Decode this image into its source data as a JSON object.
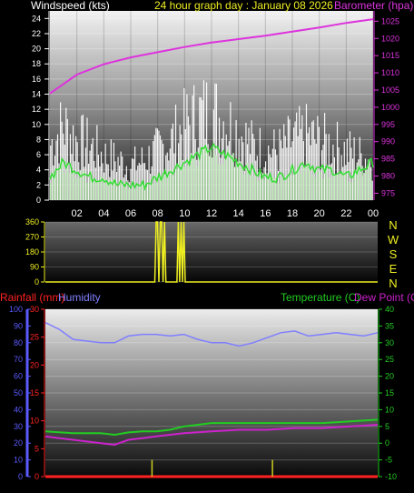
{
  "chart_data": [
    {
      "type": "line",
      "title_left": "Windspeed (kts)",
      "title_center": "24 hour graph day :  January 08 2026",
      "title_right": "Barometer (hpa)",
      "x_ticks": [
        "02",
        "04",
        "06",
        "08",
        "10",
        "12",
        "14",
        "16",
        "18",
        "20",
        "22",
        "00"
      ],
      "left_axis": {
        "label": "Windspeed (kts)",
        "ticks": [
          0,
          2,
          4,
          6,
          8,
          10,
          12,
          14,
          16,
          18,
          20,
          22,
          24
        ],
        "range": [
          0,
          25
        ]
      },
      "right_axis": {
        "label": "Barometer (hpa)",
        "ticks": [
          975,
          980,
          985,
          990,
          995,
          1000,
          1005,
          1010,
          1015,
          1020,
          1025
        ],
        "range": [
          973,
          1028
        ]
      },
      "colors": {
        "gust": "#ffffff",
        "average": "#33dd33",
        "barometer": "#dd33dd",
        "left_axis": "#ffffff",
        "right_axis": "#dd33dd"
      },
      "series": [
        {
          "key": "barometer",
          "x": [
            0,
            2,
            4,
            6,
            8,
            10,
            12,
            14,
            16,
            18,
            20,
            22,
            24
          ],
          "values": [
            1004.0,
            1009.5,
            1012.5,
            1014.5,
            1016.0,
            1017.5,
            1018.8,
            1019.8,
            1020.8,
            1022.0,
            1023.2,
            1024.5,
            1025.6
          ]
        },
        {
          "key": "gust_max",
          "x": [
            0,
            1,
            2,
            3,
            4,
            5,
            6,
            7,
            8,
            9,
            10,
            11,
            12,
            13,
            14,
            15,
            16,
            17,
            18,
            19,
            20,
            21,
            22,
            23,
            24
          ],
          "values": [
            11,
            15,
            12,
            11,
            9,
            8,
            7,
            8,
            10,
            12,
            15,
            17,
            18,
            16,
            14,
            11,
            10,
            10,
            12,
            13,
            12,
            11,
            10,
            9,
            8
          ]
        },
        {
          "key": "average",
          "x": [
            0,
            1,
            2,
            3,
            4,
            5,
            6,
            7,
            8,
            9,
            10,
            11,
            12,
            13,
            14,
            15,
            16,
            17,
            18,
            19,
            20,
            21,
            22,
            23,
            24
          ],
          "values": [
            3,
            5,
            4,
            3,
            3,
            2,
            2,
            2,
            3,
            4,
            5,
            6,
            7,
            6,
            5,
            4,
            3,
            3,
            4,
            5,
            4,
            4,
            3,
            4,
            5
          ]
        }
      ]
    },
    {
      "type": "line",
      "y_ticks": [
        0,
        90,
        180,
        270,
        360
      ],
      "right_labels": [
        "N",
        "W",
        "S",
        "E",
        "N"
      ],
      "x_range": [
        0,
        24
      ],
      "colors": {
        "direction": "#eeee22",
        "labels": "#eeee22"
      },
      "series": [
        {
          "key": "direction",
          "x": [
            0,
            7.9,
            8.0,
            8.1,
            8.2,
            8.3,
            8.4,
            8.5,
            8.6,
            8.7,
            9.5,
            9.6,
            9.7,
            9.8,
            9.9,
            10.0,
            10.1,
            24
          ],
          "values": [
            0,
            0,
            360,
            360,
            0,
            360,
            360,
            0,
            360,
            0,
            0,
            360,
            0,
            360,
            0,
            360,
            0,
            0
          ]
        }
      ]
    },
    {
      "type": "line",
      "title_rainfall": "Rainfall (mm)",
      "title_humidity": "Humidity",
      "title_temperature": "Temperature (C)",
      "title_dewpoint": "Dew Point (C)",
      "humidity_axis": {
        "ticks": [
          0,
          10,
          20,
          30,
          40,
          50,
          60,
          70,
          80,
          90,
          100
        ],
        "range": [
          0,
          100
        ]
      },
      "rain_axis": {
        "ticks": [
          0,
          5,
          10,
          15,
          20,
          25,
          30
        ],
        "range": [
          0,
          30
        ]
      },
      "temp_axis": {
        "ticks": [
          -10,
          -5,
          0,
          5,
          10,
          15,
          20,
          25,
          30,
          35,
          40
        ],
        "range": [
          -10,
          40
        ]
      },
      "x_ticks": [
        "02",
        "04",
        "06",
        "08",
        "10",
        "12",
        "14",
        "16",
        "18",
        "20",
        "22",
        "00"
      ],
      "colors": {
        "humidity": "#7f7fff",
        "temperature": "#22cc22",
        "dewpoint": "#cc22cc",
        "rainfall": "#ff2222",
        "rainrate": "#cccc22",
        "rain_axis": "#ff2222",
        "humidity_axis": "#5a5aff",
        "temp_axis": "#22cc22"
      },
      "series": [
        {
          "key": "humidity",
          "x": [
            0,
            1,
            2,
            3,
            4,
            5,
            6,
            7,
            8,
            9,
            10,
            11,
            12,
            13,
            14,
            15,
            16,
            17,
            18,
            19,
            20,
            21,
            22,
            23,
            24
          ],
          "values": [
            92,
            88,
            82,
            81,
            80,
            80,
            84,
            85,
            85,
            84,
            85,
            82,
            80,
            80,
            78,
            80,
            83,
            86,
            87,
            84,
            85,
            86,
            85,
            84,
            86
          ]
        },
        {
          "key": "temperature",
          "x": [
            0,
            2,
            4,
            5,
            6,
            7,
            8,
            9,
            10,
            11,
            12,
            14,
            16,
            18,
            20,
            22,
            24
          ],
          "values": [
            3.5,
            3.0,
            3.0,
            2.5,
            3.2,
            3.5,
            3.5,
            4.0,
            5.0,
            5.5,
            6.0,
            6.0,
            6.0,
            6.0,
            6.0,
            6.5,
            7.0
          ]
        },
        {
          "key": "dewpoint",
          "x": [
            0,
            1,
            2,
            3,
            4,
            5,
            6,
            7,
            8,
            9,
            10,
            12,
            14,
            16,
            18,
            20,
            22,
            24
          ],
          "values": [
            2.0,
            1.5,
            1.0,
            0.5,
            0.0,
            -0.5,
            1.0,
            1.5,
            2.0,
            2.5,
            3.0,
            3.5,
            4.0,
            4.0,
            4.5,
            4.5,
            5.0,
            5.5
          ]
        },
        {
          "key": "rainfall",
          "x": [
            0,
            24
          ],
          "values": [
            0,
            0
          ]
        },
        {
          "key": "rainrate",
          "x": [
            7.7,
            16.4
          ],
          "values": [
            3,
            3
          ]
        }
      ]
    }
  ]
}
